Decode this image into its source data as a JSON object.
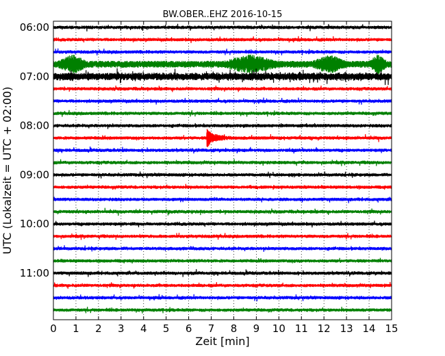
{
  "chart_data": {
    "type": "line",
    "title": "BW.OBER..EHZ 2016-10-15",
    "xlabel": "Zeit  [min]",
    "ylabel": "UTC (Lokalzeit = UTC + 02:00)",
    "xlim": [
      0,
      15
    ],
    "x_ticks": [
      0,
      1,
      2,
      3,
      4,
      5,
      6,
      7,
      8,
      9,
      10,
      11,
      12,
      13,
      14,
      15
    ],
    "x_tick_labels": [
      "0",
      "1",
      "2",
      "3",
      "4",
      "5",
      "6",
      "7",
      "8",
      "9",
      "10",
      "11",
      "12",
      "13",
      "14",
      "15"
    ],
    "y_tick_labels": [
      "06:00",
      "07:00",
      "08:00",
      "09:00",
      "10:00",
      "11:00"
    ],
    "grid": "vertical dotted",
    "trace_colors": [
      "#000000",
      "#ff0000",
      "#0000ff",
      "#008000"
    ],
    "series": [
      {
        "start": "06:00",
        "color": "#000000",
        "amplitude": 0.25
      },
      {
        "start": "06:15",
        "color": "#ff0000",
        "amplitude": 0.25
      },
      {
        "start": "06:30",
        "color": "#0000ff",
        "amplitude": 0.3
      },
      {
        "start": "06:45",
        "color": "#008000",
        "amplitude": 0.9,
        "note_segments": [
          [
            0.2,
            1.5
          ],
          [
            7.5,
            10.0
          ],
          [
            11.5,
            13.0
          ],
          [
            14.0,
            14.8
          ]
        ]
      },
      {
        "start": "07:00",
        "color": "#000000",
        "amplitude": 0.5
      },
      {
        "start": "07:15",
        "color": "#ff0000",
        "amplitude": 0.3
      },
      {
        "start": "07:30",
        "color": "#0000ff",
        "amplitude": 0.2
      },
      {
        "start": "07:45",
        "color": "#008000",
        "amplitude": 0.25
      },
      {
        "start": "08:00",
        "color": "#000000",
        "amplitude": 0.25
      },
      {
        "start": "08:15",
        "color": "#ff0000",
        "amplitude": 0.3,
        "event_min": 6.8
      },
      {
        "start": "08:30",
        "color": "#0000ff",
        "amplitude": 0.25
      },
      {
        "start": "08:45",
        "color": "#008000",
        "amplitude": 0.3
      },
      {
        "start": "09:00",
        "color": "#000000",
        "amplitude": 0.25
      },
      {
        "start": "09:15",
        "color": "#ff0000",
        "amplitude": 0.3
      },
      {
        "start": "09:30",
        "color": "#0000ff",
        "amplitude": 0.3
      },
      {
        "start": "09:45",
        "color": "#008000",
        "amplitude": 0.3
      },
      {
        "start": "10:00",
        "color": "#000000",
        "amplitude": 0.3
      },
      {
        "start": "10:15",
        "color": "#ff0000",
        "amplitude": 0.3
      },
      {
        "start": "10:30",
        "color": "#0000ff",
        "amplitude": 0.35
      },
      {
        "start": "10:45",
        "color": "#008000",
        "amplitude": 0.35
      },
      {
        "start": "11:00",
        "color": "#000000",
        "amplitude": 0.35
      },
      {
        "start": "11:15",
        "color": "#ff0000",
        "amplitude": 0.35
      },
      {
        "start": "11:30",
        "color": "#0000ff",
        "amplitude": 0.3
      },
      {
        "start": "11:45",
        "color": "#008000",
        "amplitude": 0.3
      }
    ]
  }
}
